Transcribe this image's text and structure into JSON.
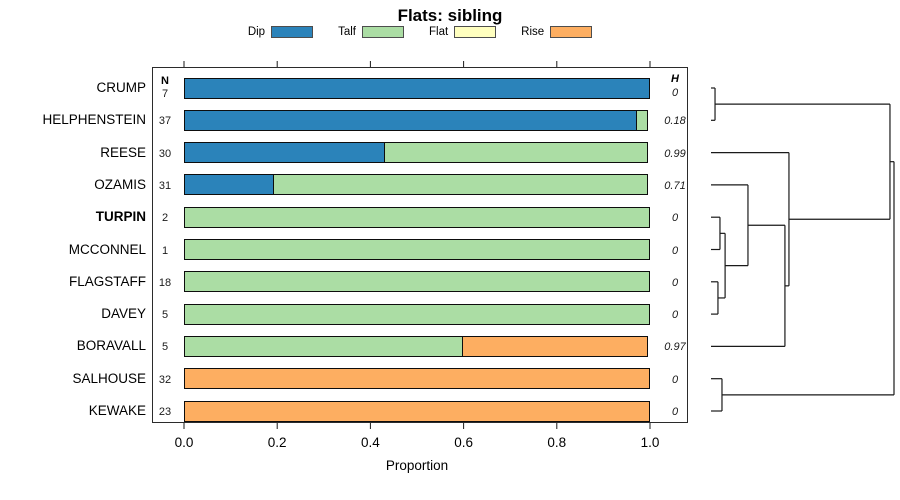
{
  "title": "Flats: sibling",
  "legend": [
    {
      "label": "Dip",
      "color": "#2B83BA"
    },
    {
      "label": "Talf",
      "color": "#ABDDA4"
    },
    {
      "label": "Flat",
      "color": "#FFFFBF"
    },
    {
      "label": "Rise",
      "color": "#FDAE61"
    }
  ],
  "columns": {
    "n_header": "N",
    "h_header": "H"
  },
  "axis": {
    "label": "Proportion",
    "ticks": [
      "0.0",
      "0.2",
      "0.4",
      "0.6",
      "0.8",
      "1.0"
    ]
  },
  "chart_data": {
    "type": "bar",
    "orientation": "horizontal",
    "stacked": true,
    "title": "Flats: sibling",
    "xlabel": "Proportion",
    "xlim": [
      0,
      1
    ],
    "grid": false,
    "legend_position": "top",
    "categories": [
      "CRUMP",
      "HELPHENSTEIN",
      "REESE",
      "OZAMIS",
      "TURPIN",
      "MCCONNEL",
      "FLAGSTAFF",
      "DAVEY",
      "BORAVALL",
      "SALHOUSE",
      "KEWAKE"
    ],
    "bold_categories": [
      "TURPIN"
    ],
    "n_values": [
      7,
      37,
      30,
      31,
      2,
      1,
      18,
      5,
      5,
      32,
      23
    ],
    "h_values": [
      "0",
      "0.18",
      "0.99",
      "0.71",
      "0",
      "0",
      "0",
      "0",
      "0.97",
      "0",
      "0"
    ],
    "series": [
      {
        "name": "Dip",
        "color": "#2B83BA",
        "values": [
          1,
          0.973,
          0.433,
          0.194,
          0,
          0,
          0,
          0,
          0,
          0,
          0
        ]
      },
      {
        "name": "Talf",
        "color": "#ABDDA4",
        "values": [
          0,
          0.027,
          0.567,
          0.806,
          1,
          1,
          1,
          1,
          0.6,
          0,
          0
        ]
      },
      {
        "name": "Flat",
        "color": "#FFFFBF",
        "values": [
          0,
          0,
          0,
          0,
          0,
          0,
          0,
          0,
          0,
          0,
          0
        ]
      },
      {
        "name": "Rise",
        "color": "#FDAE61",
        "values": [
          0,
          0,
          0,
          0,
          0,
          0,
          0,
          0,
          0.4,
          1,
          1
        ]
      }
    ],
    "dendrogram": {
      "height": 1.0,
      "children": [
        {
          "height": 0.978,
          "children": [
            {
              "height": 0.022,
              "children": [
                {
                  "leaf": 0
                },
                {
                  "leaf": 1
                }
              ]
            },
            {
              "height": 0.426,
              "children": [
                {
                  "leaf": 2
                },
                {
                  "height": 0.404,
                  "children": [
                    {
                      "height": 0.202,
                      "children": [
                        {
                          "leaf": 3
                        },
                        {
                          "height": 0.077,
                          "children": [
                            {
                              "height": 0.049,
                              "children": [
                                {
                                  "leaf": 4
                                },
                                {
                                  "leaf": 5
                                }
                              ]
                            },
                            {
                              "height": 0.038,
                              "children": [
                                {
                                  "leaf": 6
                                },
                                {
                                  "leaf": 7
                                }
                              ]
                            }
                          ]
                        }
                      ]
                    },
                    {
                      "leaf": 8
                    }
                  ]
                }
              ]
            }
          ]
        },
        {
          "height": 0.06,
          "children": [
            {
              "leaf": 9
            },
            {
              "leaf": 10
            }
          ]
        }
      ]
    }
  }
}
